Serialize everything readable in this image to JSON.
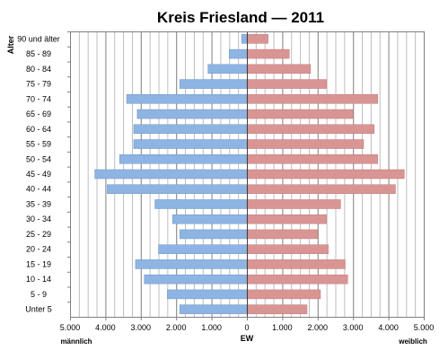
{
  "chart_data": {
    "type": "bar",
    "orientation": "horizontal",
    "layout": "population-pyramid",
    "title": "Kreis Friesland — 2011",
    "ylabel": "Alter",
    "xlabel": "EW",
    "left_side_label": "männlich",
    "right_side_label": "weiblich",
    "categories": [
      "90 und älter",
      "85 - 89",
      "80 - 84",
      "75 - 79",
      "70 - 74",
      "65 - 69",
      "60 - 64",
      "55 - 59",
      "50 - 54",
      "45 - 49",
      "40 - 44",
      "35 - 39",
      "30 - 34",
      "25 - 29",
      "20 - 24",
      "15 - 19",
      "10 - 14",
      "5 - 9",
      "Unter 5"
    ],
    "series": [
      {
        "name": "männlich",
        "color": "#8db4e2",
        "values": [
          150,
          500,
          1100,
          1900,
          3400,
          3100,
          3200,
          3200,
          3600,
          4300,
          3950,
          2600,
          2100,
          1900,
          2500,
          3150,
          2900,
          2250,
          1900
        ]
      },
      {
        "name": "weiblich",
        "color": "#d99594",
        "values": [
          600,
          1200,
          1800,
          2250,
          3700,
          3000,
          3600,
          3300,
          3700,
          4450,
          4200,
          2650,
          2250,
          2000,
          2300,
          2780,
          2850,
          2080,
          1700
        ]
      }
    ],
    "xlim": [
      -5000,
      5000
    ],
    "x_ticks": [
      {
        "value": -5000,
        "label": "5.000"
      },
      {
        "value": -4000,
        "label": "4.000"
      },
      {
        "value": -3000,
        "label": "3.000"
      },
      {
        "value": -2000,
        "label": "2.000"
      },
      {
        "value": -1000,
        "label": "1.000"
      },
      {
        "value": 0,
        "label": "0"
      },
      {
        "value": 1000,
        "label": "1.000"
      },
      {
        "value": 2000,
        "label": "2.000"
      },
      {
        "value": 3000,
        "label": "3.000"
      },
      {
        "value": 4000,
        "label": "4.000"
      },
      {
        "value": 5000,
        "label": "5.000"
      }
    ],
    "grid": true,
    "legend": "none"
  }
}
